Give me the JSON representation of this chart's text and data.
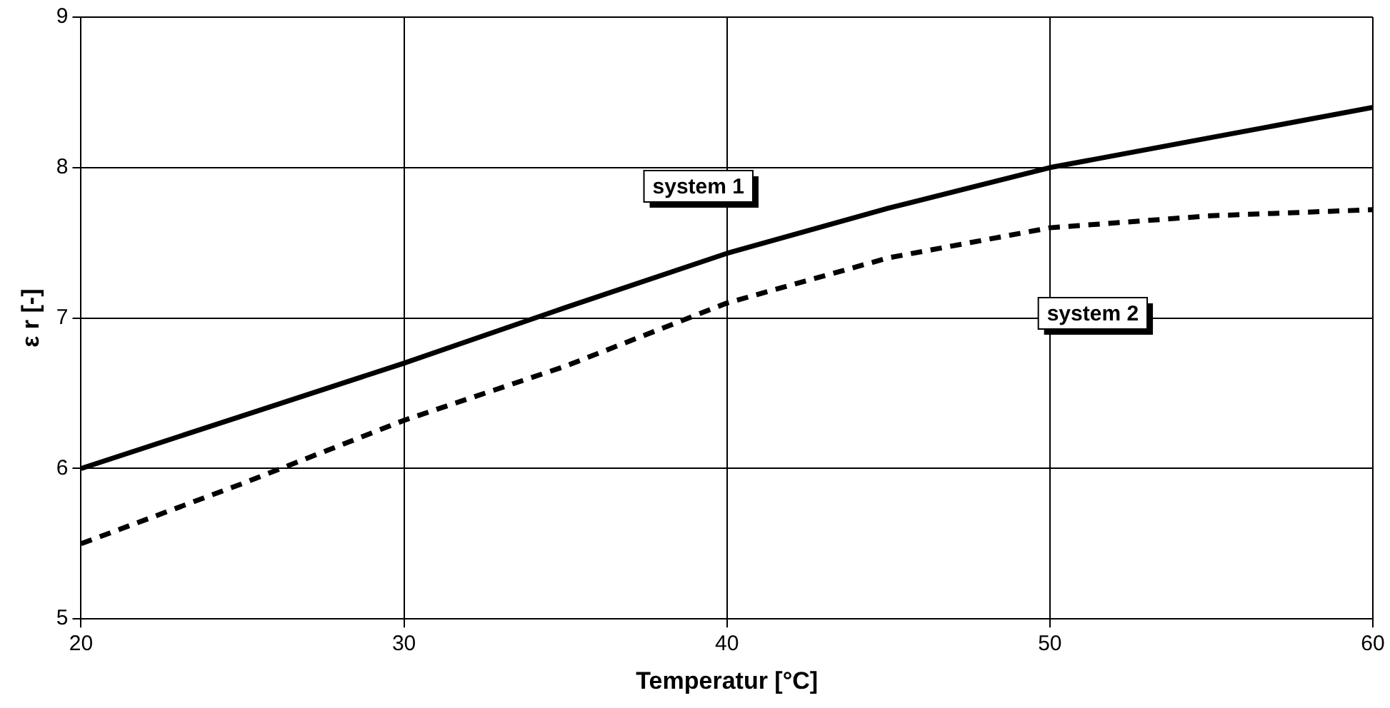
{
  "chart_data": {
    "type": "line",
    "xlabel": "Temperatur [°C]",
    "ylabel": "ε r [-]",
    "x": [
      20,
      25,
      30,
      35,
      40,
      45,
      50,
      55,
      60
    ],
    "series": [
      {
        "name": "system 1",
        "color": "#000000",
        "line_style": "solid",
        "values": [
          6.0,
          6.35,
          6.7,
          7.07,
          7.43,
          7.73,
          8.0,
          8.2,
          8.4
        ]
      },
      {
        "name": "system 2",
        "color": "#000000",
        "line_style": "dashed",
        "values": [
          5.5,
          5.9,
          6.32,
          6.68,
          7.1,
          7.4,
          7.6,
          7.68,
          7.72
        ]
      }
    ],
    "xlim": [
      20,
      60
    ],
    "xticks": [
      20,
      30,
      40,
      50,
      60
    ],
    "ylim": [
      5,
      9
    ],
    "yticks": [
      5,
      6,
      7,
      8,
      9
    ],
    "grid": true,
    "legend": false,
    "marker": "none"
  }
}
